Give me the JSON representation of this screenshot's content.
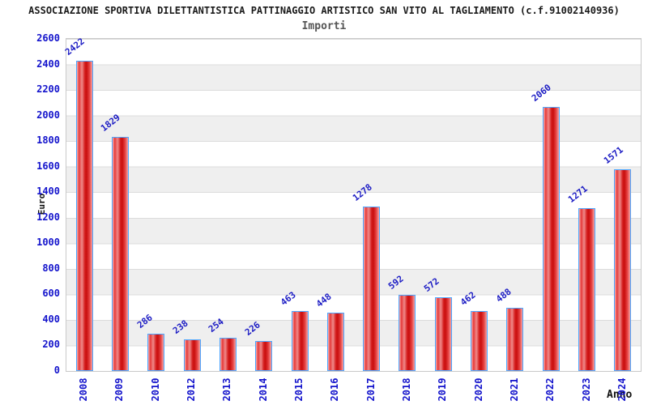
{
  "header": {
    "title": "ASSOCIAZIONE SPORTIVA DILETTANTISTICA PATTINAGGIO ARTISTICO SAN VITO AL TAGLIAMENTO (c.f.91002140936)",
    "subtitle": "Importi"
  },
  "axes": {
    "y_title": "Euro",
    "x_title": "Anno"
  },
  "chart_data": {
    "type": "bar",
    "title": "Importi",
    "categories": [
      "2008",
      "2009",
      "2010",
      "2012",
      "2013",
      "2014",
      "2015",
      "2016",
      "2017",
      "2018",
      "2019",
      "2020",
      "2021",
      "2022",
      "2023",
      "2024"
    ],
    "values": [
      2422,
      1829,
      286,
      238,
      254,
      226,
      463,
      448,
      1278,
      592,
      572,
      462,
      488,
      2060,
      1271,
      1571
    ],
    "xlabel": "Anno",
    "ylabel": "Euro",
    "ylim": [
      0,
      2600
    ],
    "ytick_step": 200,
    "grid": "horizontal-bands",
    "legend": "none",
    "colors": {
      "bar_fill": "#d31a1a",
      "bar_border": "#4da6ff",
      "tick_label": "#1414cc",
      "value_label": "#1c1cc4",
      "band_gray": "#efefef",
      "gridline": "#dcdcdc",
      "title_text": "#1a1a1a",
      "subtitle_text": "#555555"
    }
  }
}
